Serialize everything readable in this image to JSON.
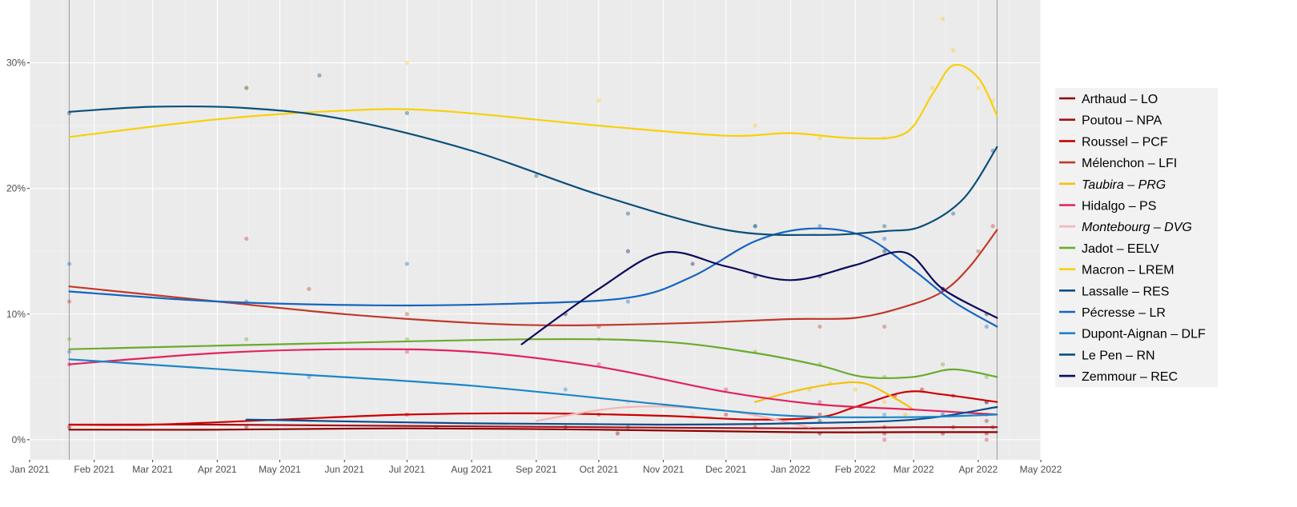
{
  "chart_data": {
    "type": "scatter",
    "title": "",
    "xlabel": "",
    "ylabel": "",
    "x_ticks": [
      "Jan 2021",
      "Feb 2021",
      "Mar 2021",
      "Apr 2021",
      "May 2021",
      "Jun 2021",
      "Jul 2021",
      "Aug 2021",
      "Sep 2021",
      "Oct 2021",
      "Nov 2021",
      "Dec 2021",
      "Jan 2022",
      "Feb 2022",
      "Mar 2022",
      "Apr 2022",
      "May 2022"
    ],
    "y_ticks": [
      "0%",
      "10%",
      "20%",
      "30%"
    ],
    "xlim": [
      "2021-01-01",
      "2022-05-01"
    ],
    "ylim": [
      -1.6,
      35
    ],
    "vertical_lines": [
      "2021-01-20",
      "2022-04-10"
    ],
    "grid": true,
    "legend_position": "right",
    "trend_lines": "smoothed",
    "series": [
      {
        "name": "Arthaud – LO",
        "italic": false,
        "color": "#8b0000",
        "trend": [
          [
            "2021-01-20",
            0.8
          ],
          [
            "2021-04-01",
            0.8
          ],
          [
            "2021-07-01",
            0.9
          ],
          [
            "2021-10-01",
            0.8
          ],
          [
            "2022-01-01",
            0.6
          ],
          [
            "2022-03-01",
            0.6
          ],
          [
            "2022-04-10",
            0.6
          ]
        ],
        "points": [
          [
            "2021-01-20",
            1
          ],
          [
            "2021-07-15",
            1
          ],
          [
            "2021-10-10",
            0.5
          ],
          [
            "2022-01-15",
            0.5
          ],
          [
            "2022-02-15",
            0.5
          ],
          [
            "2022-03-15",
            0.5
          ],
          [
            "2022-04-05",
            0.5
          ],
          [
            "2022-04-08",
            1
          ]
        ]
      },
      {
        "name": "Poutou – NPA",
        "italic": false,
        "color": "#a50f15",
        "trend": [
          [
            "2021-01-20",
            1.2
          ],
          [
            "2021-04-01",
            1.2
          ],
          [
            "2021-07-01",
            1.1
          ],
          [
            "2021-10-01",
            1.0
          ],
          [
            "2022-01-01",
            0.9
          ],
          [
            "2022-03-01",
            1.0
          ],
          [
            "2022-04-10",
            1.0
          ]
        ],
        "points": [
          [
            "2021-04-15",
            1
          ],
          [
            "2021-09-15",
            1
          ],
          [
            "2021-12-15",
            1
          ],
          [
            "2022-02-15",
            1
          ],
          [
            "2022-03-20",
            1
          ],
          [
            "2022-04-05",
            1.5
          ]
        ]
      },
      {
        "name": "Roussel – PCF",
        "italic": false,
        "color": "#cc0000",
        "trend": [
          [
            "2021-01-20",
            1.2
          ],
          [
            "2021-03-01",
            1.2
          ],
          [
            "2021-05-01",
            1.6
          ],
          [
            "2021-07-01",
            2.0
          ],
          [
            "2021-09-01",
            2.1
          ],
          [
            "2021-11-01",
            1.9
          ],
          [
            "2021-12-15",
            1.6
          ],
          [
            "2022-01-15",
            1.8
          ],
          [
            "2022-02-01",
            2.6
          ],
          [
            "2022-02-25",
            3.8
          ],
          [
            "2022-03-15",
            3.6
          ],
          [
            "2022-04-10",
            3.0
          ]
        ],
        "points": [
          [
            "2021-07-01",
            2
          ],
          [
            "2021-10-01",
            2
          ],
          [
            "2021-12-01",
            2
          ],
          [
            "2022-01-15",
            2
          ],
          [
            "2022-02-20",
            3.5
          ],
          [
            "2022-03-05",
            4
          ],
          [
            "2022-03-20",
            3.5
          ],
          [
            "2022-04-05",
            3
          ]
        ]
      },
      {
        "name": "Mélenchon – LFI",
        "italic": false,
        "color": "#c0392b",
        "trend": [
          [
            "2021-01-20",
            12.2
          ],
          [
            "2021-04-01",
            11.0
          ],
          [
            "2021-06-01",
            10.0
          ],
          [
            "2021-08-01",
            9.3
          ],
          [
            "2021-09-15",
            9.1
          ],
          [
            "2021-11-15",
            9.3
          ],
          [
            "2022-01-01",
            9.6
          ],
          [
            "2022-02-01",
            9.7
          ],
          [
            "2022-02-25",
            10.6
          ],
          [
            "2022-03-15",
            11.8
          ],
          [
            "2022-03-28",
            13.8
          ],
          [
            "2022-04-10",
            16.7
          ]
        ],
        "points": [
          [
            "2021-01-20",
            11
          ],
          [
            "2021-05-15",
            12
          ],
          [
            "2021-07-01",
            10
          ],
          [
            "2021-10-01",
            9
          ],
          [
            "2022-01-15",
            9
          ],
          [
            "2022-02-15",
            9
          ],
          [
            "2022-03-15",
            12
          ],
          [
            "2022-04-01",
            15
          ],
          [
            "2022-04-08",
            17
          ]
        ]
      },
      {
        "name": "Taubira – PRG",
        "italic": true,
        "color": "#f4c20d",
        "trend": [
          [
            "2021-12-15",
            3.0
          ],
          [
            "2022-01-01",
            3.8
          ],
          [
            "2022-01-20",
            4.4
          ],
          [
            "2022-02-05",
            4.5
          ],
          [
            "2022-02-20",
            3.3
          ],
          [
            "2022-03-01",
            2.4
          ]
        ],
        "points": [
          [
            "2022-01-10",
            4
          ],
          [
            "2022-01-20",
            4.5
          ],
          [
            "2022-02-01",
            4
          ],
          [
            "2022-02-15",
            3
          ],
          [
            "2022-02-25",
            2
          ]
        ]
      },
      {
        "name": "Hidalgo – PS",
        "italic": false,
        "color": "#e0245e",
        "trend": [
          [
            "2021-01-20",
            6.0
          ],
          [
            "2021-04-01",
            6.9
          ],
          [
            "2021-06-01",
            7.2
          ],
          [
            "2021-08-01",
            7.0
          ],
          [
            "2021-10-01",
            5.8
          ],
          [
            "2021-12-01",
            3.8
          ],
          [
            "2022-01-15",
            2.8
          ],
          [
            "2022-03-01",
            2.4
          ],
          [
            "2022-04-10",
            2.0
          ]
        ],
        "points": [
          [
            "2021-01-20",
            6
          ],
          [
            "2021-04-15",
            16
          ],
          [
            "2021-07-01",
            7
          ],
          [
            "2021-10-01",
            6
          ],
          [
            "2021-12-01",
            4
          ],
          [
            "2022-01-15",
            3
          ],
          [
            "2022-02-15",
            0
          ],
          [
            "2022-04-05",
            0
          ]
        ]
      },
      {
        "name": "Montebourg – DVG",
        "italic": true,
        "color": "#f4b6b6",
        "trend": [
          [
            "2021-09-01",
            1.5
          ],
          [
            "2021-10-15",
            2.6
          ],
          [
            "2021-12-01",
            2.3
          ],
          [
            "2022-01-10",
            1.0
          ]
        ],
        "points": [
          [
            "2021-09-15",
            2
          ],
          [
            "2021-10-15",
            3
          ],
          [
            "2021-11-15",
            2
          ],
          [
            "2021-12-15",
            1.5
          ]
        ]
      },
      {
        "name": "Jadot – EELV",
        "italic": false,
        "color": "#6aab2e",
        "trend": [
          [
            "2021-01-20",
            7.2
          ],
          [
            "2021-05-01",
            7.6
          ],
          [
            "2021-09-01",
            8.0
          ],
          [
            "2021-11-01",
            7.8
          ],
          [
            "2021-12-15",
            6.9
          ],
          [
            "2022-01-15",
            5.9
          ],
          [
            "2022-02-05",
            5.0
          ],
          [
            "2022-03-01",
            5.0
          ],
          [
            "2022-03-20",
            5.6
          ],
          [
            "2022-04-10",
            5.0
          ]
        ],
        "points": [
          [
            "2021-01-20",
            8
          ],
          [
            "2021-04-15",
            8
          ],
          [
            "2021-07-01",
            8
          ],
          [
            "2021-10-01",
            8
          ],
          [
            "2021-12-15",
            7
          ],
          [
            "2022-01-15",
            6
          ],
          [
            "2022-02-15",
            5
          ],
          [
            "2022-03-15",
            6
          ],
          [
            "2022-04-05",
            5
          ]
        ]
      },
      {
        "name": "Macron – LREM",
        "italic": false,
        "color": "#f7d108",
        "trend": [
          [
            "2021-01-20",
            24.1
          ],
          [
            "2021-04-01",
            25.5
          ],
          [
            "2021-06-01",
            26.2
          ],
          [
            "2021-07-15",
            26.2
          ],
          [
            "2021-10-01",
            25.0
          ],
          [
            "2021-12-01",
            24.2
          ],
          [
            "2022-01-01",
            24.4
          ],
          [
            "2022-02-01",
            24.0
          ],
          [
            "2022-02-25",
            24.4
          ],
          [
            "2022-03-10",
            27.5
          ],
          [
            "2022-03-20",
            29.8
          ],
          [
            "2022-04-01",
            28.8
          ],
          [
            "2022-04-10",
            25.8
          ]
        ],
        "points": [
          [
            "2021-04-15",
            28
          ],
          [
            "2021-07-01",
            30
          ],
          [
            "2021-10-01",
            27
          ],
          [
            "2021-12-15",
            25
          ],
          [
            "2022-01-15",
            24
          ],
          [
            "2022-02-15",
            24
          ],
          [
            "2022-03-10",
            28
          ],
          [
            "2022-03-15",
            33.5
          ],
          [
            "2022-03-20",
            31
          ],
          [
            "2022-04-01",
            28
          ],
          [
            "2022-04-08",
            27
          ]
        ]
      },
      {
        "name": "Lassalle – RES",
        "italic": false,
        "color": "#0b4c8c",
        "trend": [
          [
            "2021-04-15",
            1.6
          ],
          [
            "2021-08-01",
            1.3
          ],
          [
            "2021-11-01",
            1.2
          ],
          [
            "2022-01-01",
            1.3
          ],
          [
            "2022-03-01",
            1.6
          ],
          [
            "2022-04-10",
            2.6
          ]
        ],
        "points": [
          [
            "2021-10-15",
            1
          ],
          [
            "2022-01-15",
            1.5
          ],
          [
            "2022-03-15",
            2
          ],
          [
            "2022-04-05",
            3
          ]
        ]
      },
      {
        "name": "Pécresse – LR",
        "italic": false,
        "color": "#1565c0",
        "trend": [
          [
            "2021-01-20",
            11.8
          ],
          [
            "2021-04-01",
            11.0
          ],
          [
            "2021-06-15",
            10.7
          ],
          [
            "2021-08-15",
            10.8
          ],
          [
            "2021-10-15",
            11.3
          ],
          [
            "2021-11-15",
            13.0
          ],
          [
            "2021-12-15",
            15.8
          ],
          [
            "2022-01-10",
            16.8
          ],
          [
            "2022-02-05",
            16.2
          ],
          [
            "2022-03-01",
            13.5
          ],
          [
            "2022-03-20",
            11.0
          ],
          [
            "2022-04-10",
            9.0
          ]
        ],
        "points": [
          [
            "2021-01-20",
            14
          ],
          [
            "2021-04-15",
            11
          ],
          [
            "2021-07-01",
            14
          ],
          [
            "2021-10-15",
            11
          ],
          [
            "2021-12-15",
            17
          ],
          [
            "2022-01-15",
            17
          ],
          [
            "2022-02-15",
            16
          ],
          [
            "2022-03-15",
            12
          ],
          [
            "2022-04-05",
            9
          ]
        ]
      },
      {
        "name": "Dupont-Aignan – DLF",
        "italic": false,
        "color": "#1a86c8",
        "trend": [
          [
            "2021-01-20",
            6.4
          ],
          [
            "2021-05-01",
            5.3
          ],
          [
            "2021-08-01",
            4.3
          ],
          [
            "2021-11-01",
            2.8
          ],
          [
            "2022-01-01",
            1.9
          ],
          [
            "2022-03-01",
            1.8
          ],
          [
            "2022-04-10",
            2.0
          ]
        ],
        "points": [
          [
            "2021-01-20",
            7
          ],
          [
            "2021-05-15",
            5
          ],
          [
            "2021-09-15",
            4
          ],
          [
            "2021-12-15",
            2
          ],
          [
            "2022-02-15",
            2
          ],
          [
            "2022-04-05",
            2
          ]
        ]
      },
      {
        "name": "Le Pen – RN",
        "italic": false,
        "color": "#0b4f7a",
        "trend": [
          [
            "2021-01-20",
            26.1
          ],
          [
            "2021-03-01",
            26.5
          ],
          [
            "2021-04-15",
            26.4
          ],
          [
            "2021-06-01",
            25.5
          ],
          [
            "2021-08-01",
            23.0
          ],
          [
            "2021-10-01",
            19.5
          ],
          [
            "2021-12-01",
            16.7
          ],
          [
            "2022-01-15",
            16.3
          ],
          [
            "2022-02-15",
            16.6
          ],
          [
            "2022-03-05",
            17.0
          ],
          [
            "2022-03-25",
            19.2
          ],
          [
            "2022-04-10",
            23.3
          ]
        ],
        "points": [
          [
            "2021-01-20",
            26
          ],
          [
            "2021-04-15",
            28
          ],
          [
            "2021-05-20",
            29
          ],
          [
            "2021-07-01",
            26
          ],
          [
            "2021-09-01",
            21
          ],
          [
            "2021-10-15",
            18
          ],
          [
            "2021-12-15",
            17
          ],
          [
            "2022-02-15",
            17
          ],
          [
            "2022-03-20",
            18
          ],
          [
            "2022-04-08",
            23
          ]
        ]
      },
      {
        "name": "Zemmour – REC",
        "italic": false,
        "color": "#0c0c5c",
        "trend": [
          [
            "2021-08-25",
            7.6
          ],
          [
            "2021-10-01",
            12.0
          ],
          [
            "2021-11-01",
            14.9
          ],
          [
            "2021-12-01",
            13.8
          ],
          [
            "2022-01-01",
            12.7
          ],
          [
            "2022-02-01",
            13.9
          ],
          [
            "2022-02-25",
            14.9
          ],
          [
            "2022-03-15",
            12.0
          ],
          [
            "2022-04-10",
            9.7
          ]
        ],
        "points": [
          [
            "2021-09-15",
            10
          ],
          [
            "2021-10-15",
            15
          ],
          [
            "2021-11-15",
            14
          ],
          [
            "2021-12-15",
            13
          ],
          [
            "2022-01-15",
            13
          ],
          [
            "2022-02-15",
            15
          ],
          [
            "2022-03-15",
            12
          ],
          [
            "2022-04-05",
            10
          ]
        ]
      }
    ]
  }
}
